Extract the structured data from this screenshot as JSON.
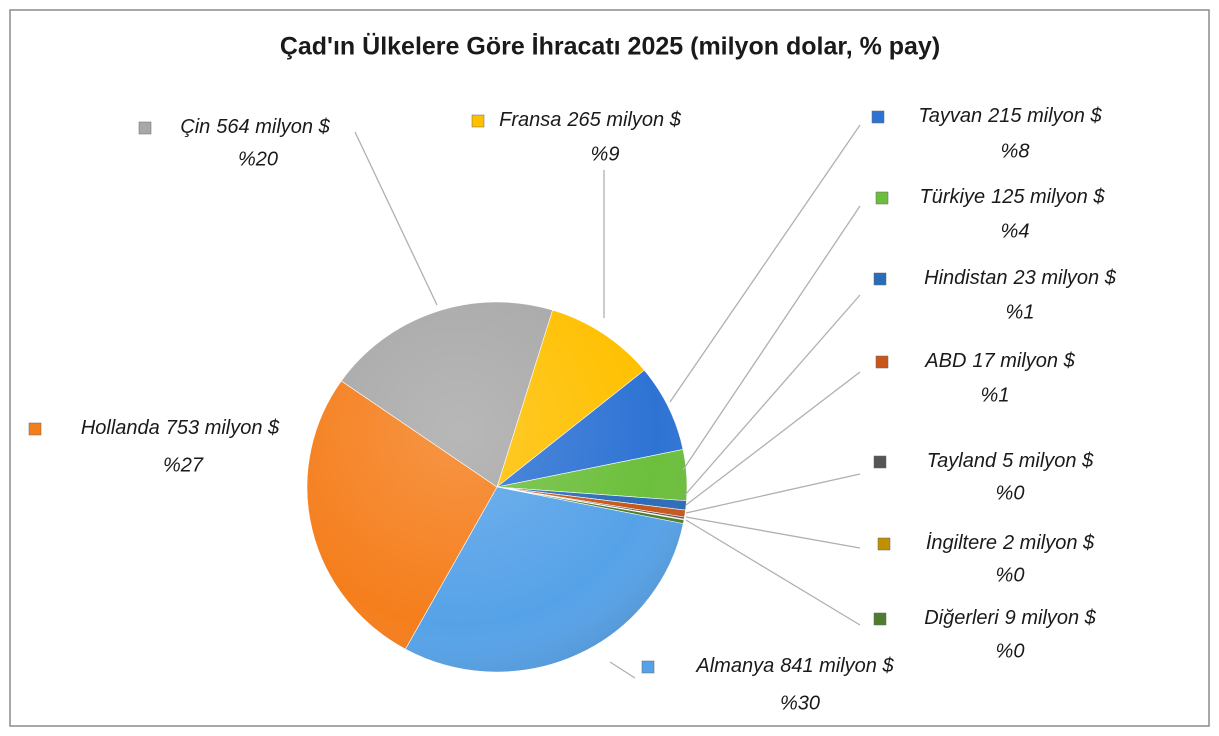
{
  "chart_data": {
    "type": "pie",
    "title": "Çad'ın Ülkelere Göre İhracatı 2025 (milyon dolar, % pay)",
    "categories": [
      "Fransa",
      "Tayvan",
      "Türkiye",
      "Hindistan",
      "ABD",
      "Tayland",
      "İngiltere",
      "Diğerleri",
      "Almanya",
      "Hollanda",
      "Çin"
    ],
    "values": [
      265,
      215,
      125,
      23,
      17,
      5,
      2,
      9,
      841,
      753,
      564
    ],
    "value_labels": [
      "265 milyon $",
      "215 milyon $",
      "125 milyon $",
      "23 milyon $",
      "17 milyon $",
      "5 milyon $",
      "2 milyon $",
      "9 milyon $",
      "841 milyon $",
      "753 milyon $",
      "564 milyon $"
    ],
    "percent_labels": [
      "%9",
      "%8",
      "%4",
      "%1",
      "%1",
      "%0",
      "%0",
      "%0",
      "%30",
      "%27",
      "%20"
    ],
    "colors": [
      "#ffc000",
      "#2e73d4",
      "#6cbf3c",
      "#2b6cb8",
      "#c9561a",
      "#555555",
      "#c09000",
      "#4f7d2e",
      "#56a2e8",
      "#f57e1c",
      "#a8a8a8"
    ]
  }
}
